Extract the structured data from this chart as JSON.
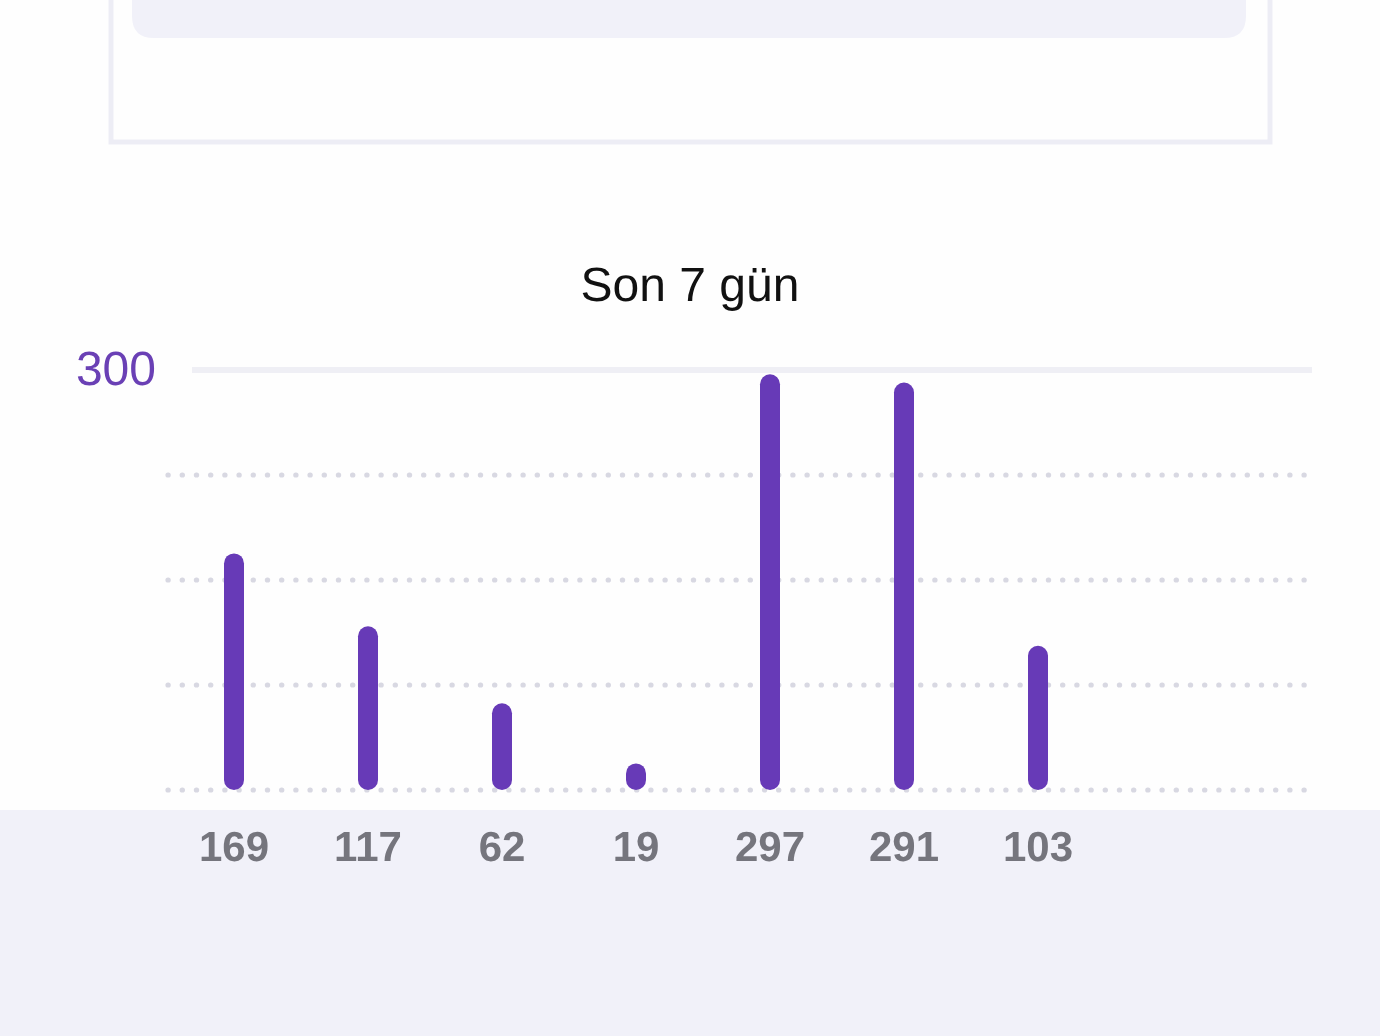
{
  "chart_data": {
    "type": "bar",
    "title": "Son 7 gün",
    "categories": [
      null,
      null,
      null,
      null,
      null,
      null,
      null
    ],
    "values": [
      169,
      117,
      62,
      19,
      297,
      291,
      103
    ],
    "color": "#673ab7",
    "ylim": [
      0,
      300
    ],
    "yticks": [
      {
        "value": 0,
        "label": null
      },
      {
        "value": 75,
        "label": null
      },
      {
        "value": 150,
        "label": null
      },
      {
        "value": 225,
        "label": null
      },
      300
    ],
    "grid": "y",
    "data_labels": true
  }
}
